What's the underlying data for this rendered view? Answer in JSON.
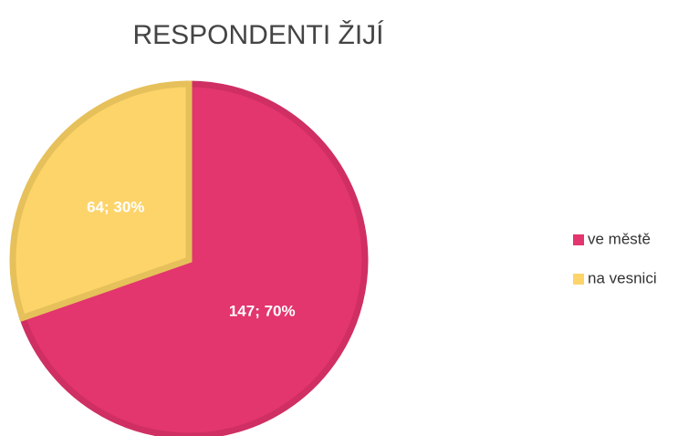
{
  "chart_data": {
    "type": "pie",
    "title": "RESPONDENTI ŽIJÍ",
    "categories": [
      "ve městě",
      "na vesnici"
    ],
    "values": [
      147,
      64
    ],
    "value_labels": [
      "147; 70%",
      "64; 30%"
    ],
    "colors": [
      "#e3356e",
      "#fcd46a"
    ],
    "stroke_colors": [
      "#cf2f63",
      "#e6c05a"
    ],
    "legend": "right"
  }
}
